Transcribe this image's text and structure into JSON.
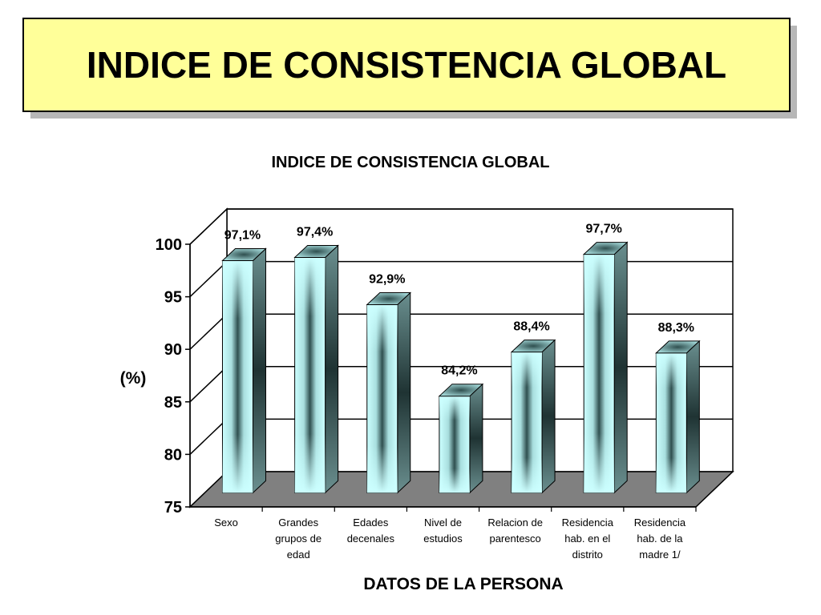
{
  "slide": {
    "title": "INDICE DE CONSISTENCIA GLOBAL"
  },
  "chart_data": {
    "type": "bar",
    "title": "INDICE DE CONSISTENCIA GLOBAL",
    "xlabel": "DATOS DE LA PERSONA",
    "ylabel": "(%)",
    "ylim": [
      75,
      100
    ],
    "yticks": [
      75,
      80,
      85,
      90,
      95,
      100
    ],
    "grid": true,
    "categories": [
      [
        "Sexo"
      ],
      [
        "Grandes",
        "grupos de",
        "edad"
      ],
      [
        "Edades",
        "decenales"
      ],
      [
        "Nivel de",
        "estudios"
      ],
      [
        "Relacion de",
        "parentesco"
      ],
      [
        "Residencia",
        "hab. en el",
        "distrito"
      ],
      [
        "Residencia",
        "hab. de la",
        "madre   1/"
      ]
    ],
    "values": [
      97.1,
      97.4,
      92.9,
      84.2,
      88.4,
      97.7,
      88.3
    ],
    "data_labels": [
      "97,1%",
      "97,4%",
      "92,9%",
      "84,2%",
      "88,4%",
      "97,7%",
      "88,3%"
    ],
    "colors": {
      "bar_light": "#ccffff",
      "bar_mid": "#7fb2b2",
      "bar_dark": "#2f4f4f",
      "floor": "#808080"
    }
  }
}
